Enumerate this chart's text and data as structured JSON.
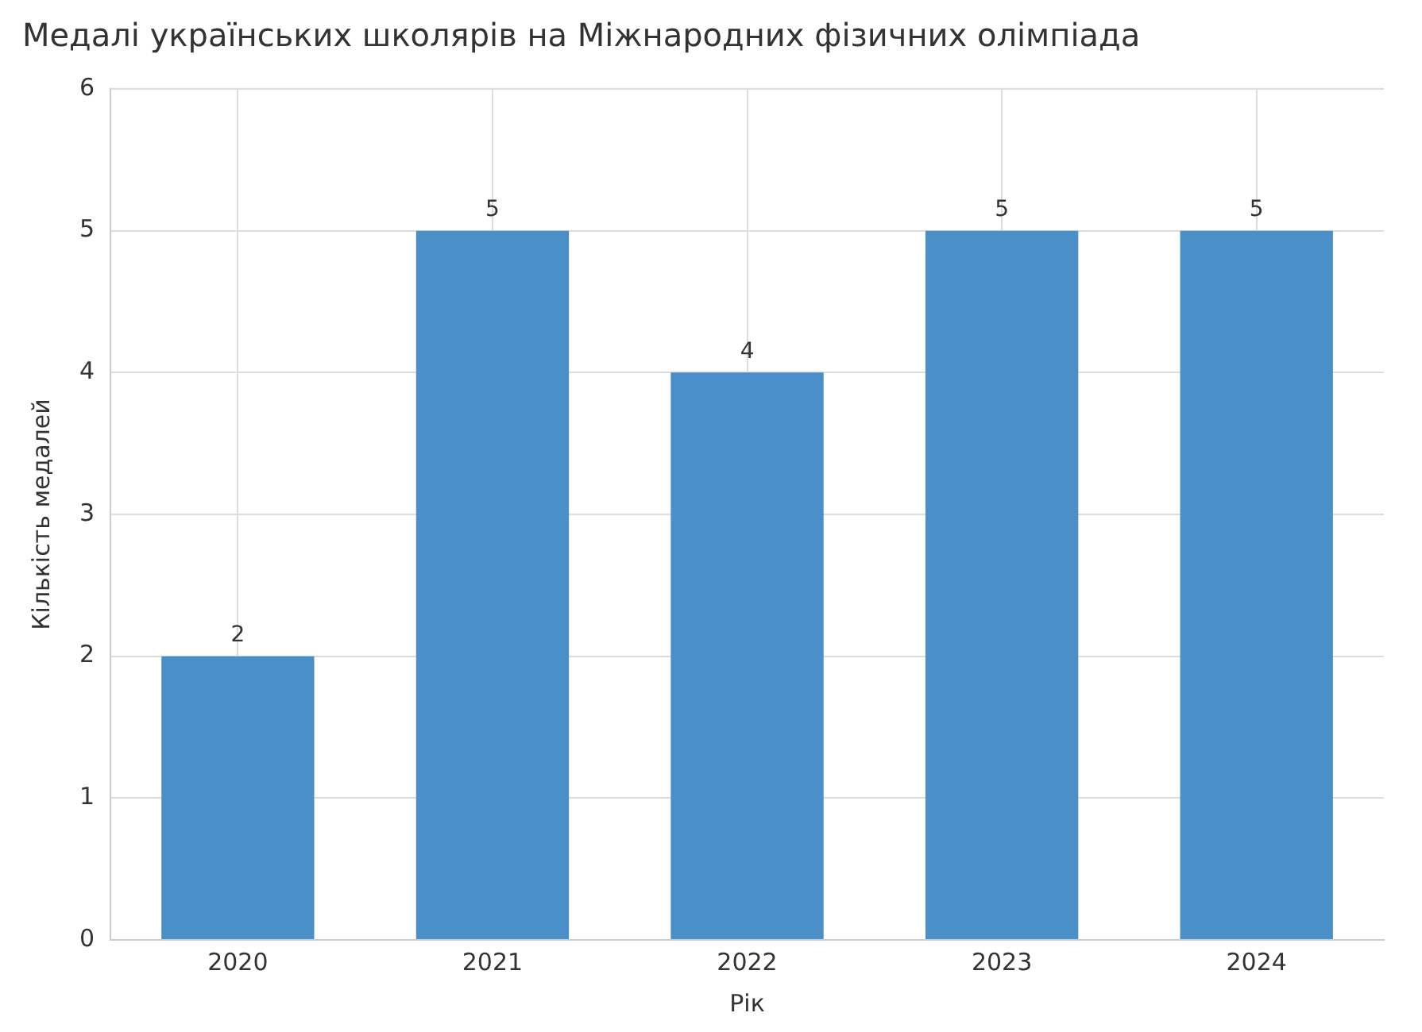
{
  "chart_data": {
    "type": "bar",
    "title": "Медалі українських школярів на Міжнародних фізичних олімпіада",
    "xlabel": "Рік",
    "ylabel": "Кількість медалей",
    "categories": [
      "2020",
      "2021",
      "2022",
      "2023",
      "2024"
    ],
    "values": [
      2,
      5,
      4,
      5,
      5
    ],
    "color": "#4a8fc7",
    "ylim": [
      0,
      6
    ],
    "yticks": [
      0,
      1,
      2,
      3,
      4,
      5,
      6
    ],
    "grid": true,
    "data_labels": true
  }
}
